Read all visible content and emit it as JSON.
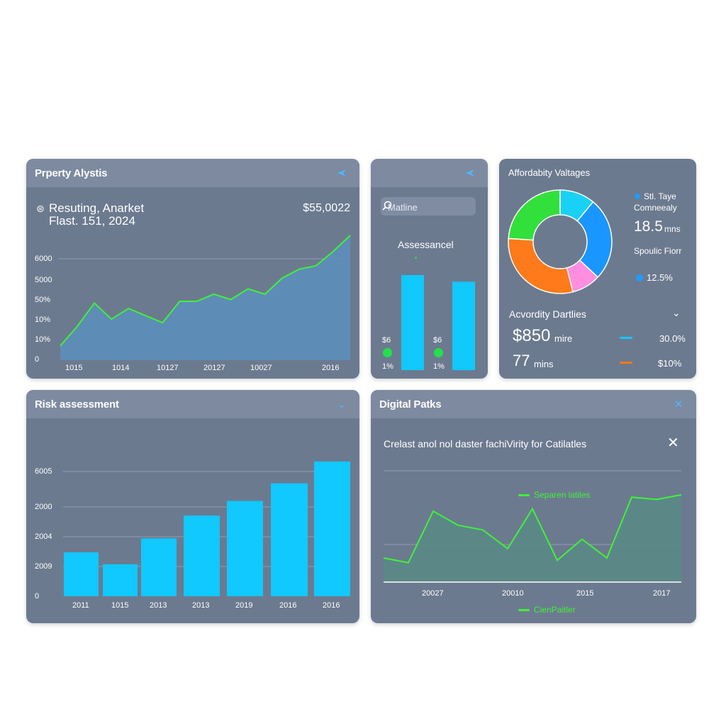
{
  "property_panel": {
    "title": "Prperty Alystis",
    "subtitle_line1": "Resuting, Anarket",
    "subtitle_line2": "Flast. 151, 2024",
    "value": "$55,0022",
    "y_labels": [
      "6000",
      "5000",
      "50%",
      "10%",
      "10%",
      "0"
    ],
    "x_labels": [
      "1015",
      "1014",
      "10127",
      "20127",
      "10027",
      "2016"
    ],
    "series": [
      8,
      19,
      32,
      23,
      29,
      25,
      21,
      33,
      33,
      37,
      34,
      40,
      37,
      46,
      51,
      53,
      61,
      70
    ]
  },
  "assessment_panel": {
    "search_placeholder": "Matline",
    "label": "Assessancel",
    "bars": [
      {
        "top_label": "$6",
        "bottom_label": "1%",
        "value": 100
      },
      {
        "top_label": "$6",
        "bottom_label": "1%",
        "value": 93
      }
    ]
  },
  "affordability_panel": {
    "title": "Affordabity Valtages",
    "legend": [
      {
        "label_line1": "Stl. Taye",
        "label_line2": "Comneealy",
        "color": "#1f9bff"
      },
      {
        "value": "18.5",
        "unit": "mns"
      },
      {
        "label": "Spoulic Fiorr"
      },
      {
        "value": "12.5%",
        "color": "#1f9bff"
      }
    ],
    "donut": [
      {
        "color": "#19d1f5",
        "value": 11
      },
      {
        "color": "#1996ff",
        "value": 26
      },
      {
        "color": "#ff8ee0",
        "value": 9
      },
      {
        "color": "#ff7a1a",
        "value": 30
      },
      {
        "color": "#32e03c",
        "value": 24
      }
    ],
    "section_title": "Acvordity Dartlies",
    "rows": [
      {
        "big": "$850",
        "small": "mire",
        "line_color": "#19c6ff",
        "pct": "30.0%"
      },
      {
        "big": "77",
        "small": "mins",
        "line_color": "#ff7a1a",
        "pct": "$10%"
      }
    ]
  },
  "risk_panel": {
    "title": "Risk assessment",
    "y_labels": [
      "6005",
      "2000",
      "2004",
      "2009",
      "0"
    ],
    "x_labels": [
      "2011",
      "1015",
      "2013",
      "2013",
      "2019",
      "2016",
      "2016"
    ],
    "values": [
      1290,
      940,
      1700,
      2370,
      2800,
      3320,
      3960
    ],
    "ymax": 4500
  },
  "digital_panel": {
    "title": "Digital Patks",
    "subtitle": "Crelast anol nol daster fachiVirity for Catilatles",
    "legend_top": "Separen latiles",
    "legend_bottom": "CienPaitler",
    "x_labels": [
      "20027",
      "20010",
      "2015",
      "2017"
    ],
    "series": [
      10,
      8,
      30,
      24,
      22,
      14,
      31,
      9,
      18,
      10,
      36,
      35,
      37
    ],
    "colors": {
      "line": "#3ff23a",
      "fill": "#5a8a86"
    }
  }
}
